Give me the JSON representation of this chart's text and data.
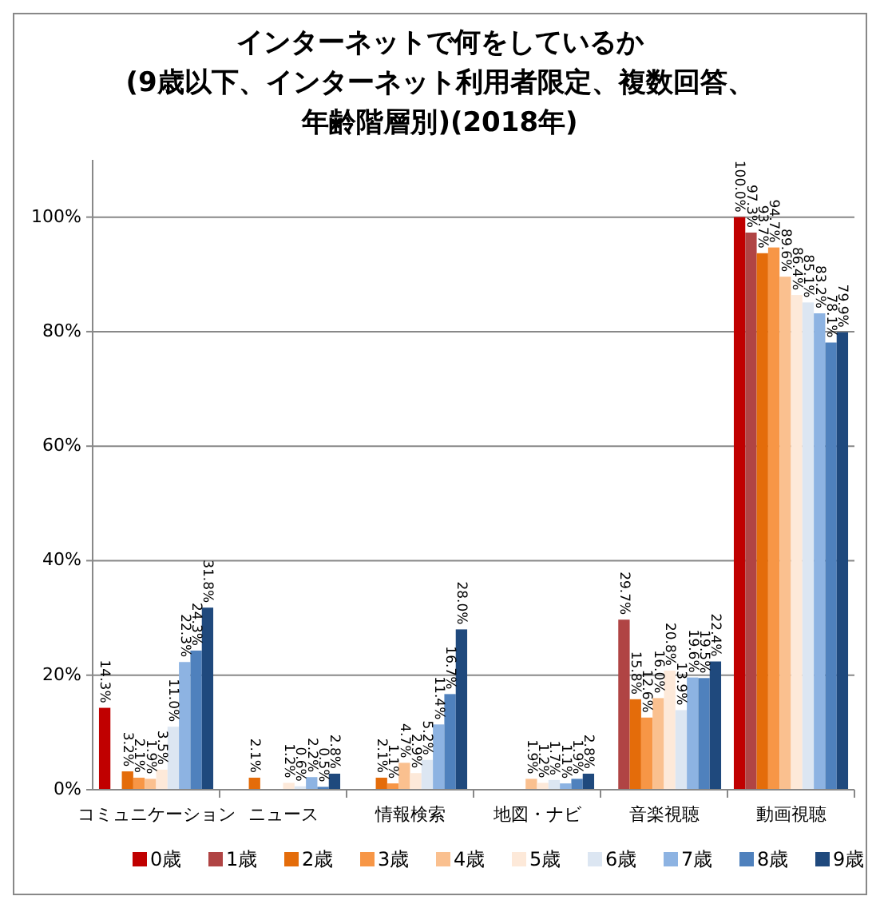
{
  "chart_data": {
    "type": "bar",
    "title": "インターネットで何をしているか",
    "subtitle": "(9歳以下、インターネット利用者限定、複数回答、年齢階層別)(2018年)",
    "categories": [
      "コミュニケーション",
      "ニュース",
      "情報検索",
      "地図・ナビ",
      "音楽視聴",
      "動画視聴"
    ],
    "ylim": [
      0,
      110
    ],
    "yticks": [
      {
        "value": 0,
        "label": "0%"
      },
      {
        "value": 20,
        "label": "20%"
      },
      {
        "value": 40,
        "label": "40%"
      },
      {
        "value": 60,
        "label": "60%"
      },
      {
        "value": 80,
        "label": "80%"
      },
      {
        "value": 100,
        "label": "100%"
      }
    ],
    "grid": "y",
    "legend": "bottom",
    "series": [
      {
        "name": "0歳",
        "color": "#c00000",
        "values": [
          14.3,
          null,
          null,
          null,
          null,
          100.0
        ],
        "value_labels": [
          "14.3%",
          null,
          null,
          null,
          null,
          "100.0%"
        ]
      },
      {
        "name": "1歳",
        "color": "#b04444",
        "values": [
          null,
          null,
          null,
          null,
          29.7,
          97.3
        ],
        "value_labels": [
          null,
          null,
          null,
          null,
          "29.7%",
          "97.3%"
        ]
      },
      {
        "name": "2歳",
        "color": "#e46c0a",
        "values": [
          3.2,
          2.1,
          2.1,
          null,
          15.8,
          93.7
        ],
        "value_labels": [
          "3.2%",
          "2.1%",
          "2.1%",
          null,
          "15.8%",
          "93.7%"
        ]
      },
      {
        "name": "3歳",
        "color": "#f79646",
        "values": [
          2.1,
          null,
          1.1,
          null,
          12.6,
          94.7
        ],
        "value_labels": [
          "2.1%",
          null,
          "1.1%",
          null,
          "12.6%",
          "94.7%"
        ]
      },
      {
        "name": "4歳",
        "color": "#fac08f",
        "values": [
          1.9,
          null,
          4.7,
          1.9,
          16.0,
          89.6
        ],
        "value_labels": [
          "1.9%",
          null,
          "4.7%",
          "1.9%",
          "16.0%",
          "89.6%"
        ]
      },
      {
        "name": "5歳",
        "color": "#fde9d9",
        "values": [
          3.5,
          1.2,
          2.9,
          1.2,
          20.8,
          86.4
        ],
        "value_labels": [
          "3.5%",
          "1.2%",
          "2.9%",
          "1.2%",
          "20.8%",
          "86.4%"
        ]
      },
      {
        "name": "6歳",
        "color": "#dce6f2",
        "values": [
          11.0,
          0.6,
          5.2,
          1.7,
          13.9,
          85.1
        ],
        "value_labels": [
          "11.0%",
          "0.6%",
          "5.2%",
          "1.7%",
          "13.9%",
          "85.1%"
        ]
      },
      {
        "name": "7歳",
        "color": "#8db3e2",
        "values": [
          22.3,
          2.2,
          11.4,
          1.1,
          19.6,
          83.2
        ],
        "value_labels": [
          "22.3%",
          "2.2%",
          "11.4%",
          "1.1%",
          "19.6%",
          "83.2%"
        ]
      },
      {
        "name": "8歳",
        "color": "#4f81bd",
        "values": [
          24.3,
          0.5,
          16.7,
          1.9,
          19.5,
          78.1
        ],
        "value_labels": [
          "24.3%",
          "0.5%",
          "16.7%",
          "1.9%",
          "19.5%",
          "78.1%"
        ]
      },
      {
        "name": "9歳",
        "color": "#1f497d",
        "values": [
          31.8,
          2.8,
          28.0,
          2.8,
          22.4,
          79.9
        ],
        "value_labels": [
          "31.8%",
          "2.8%",
          "28.0%",
          "2.8%",
          "22.4%",
          "79.9%"
        ]
      }
    ]
  }
}
